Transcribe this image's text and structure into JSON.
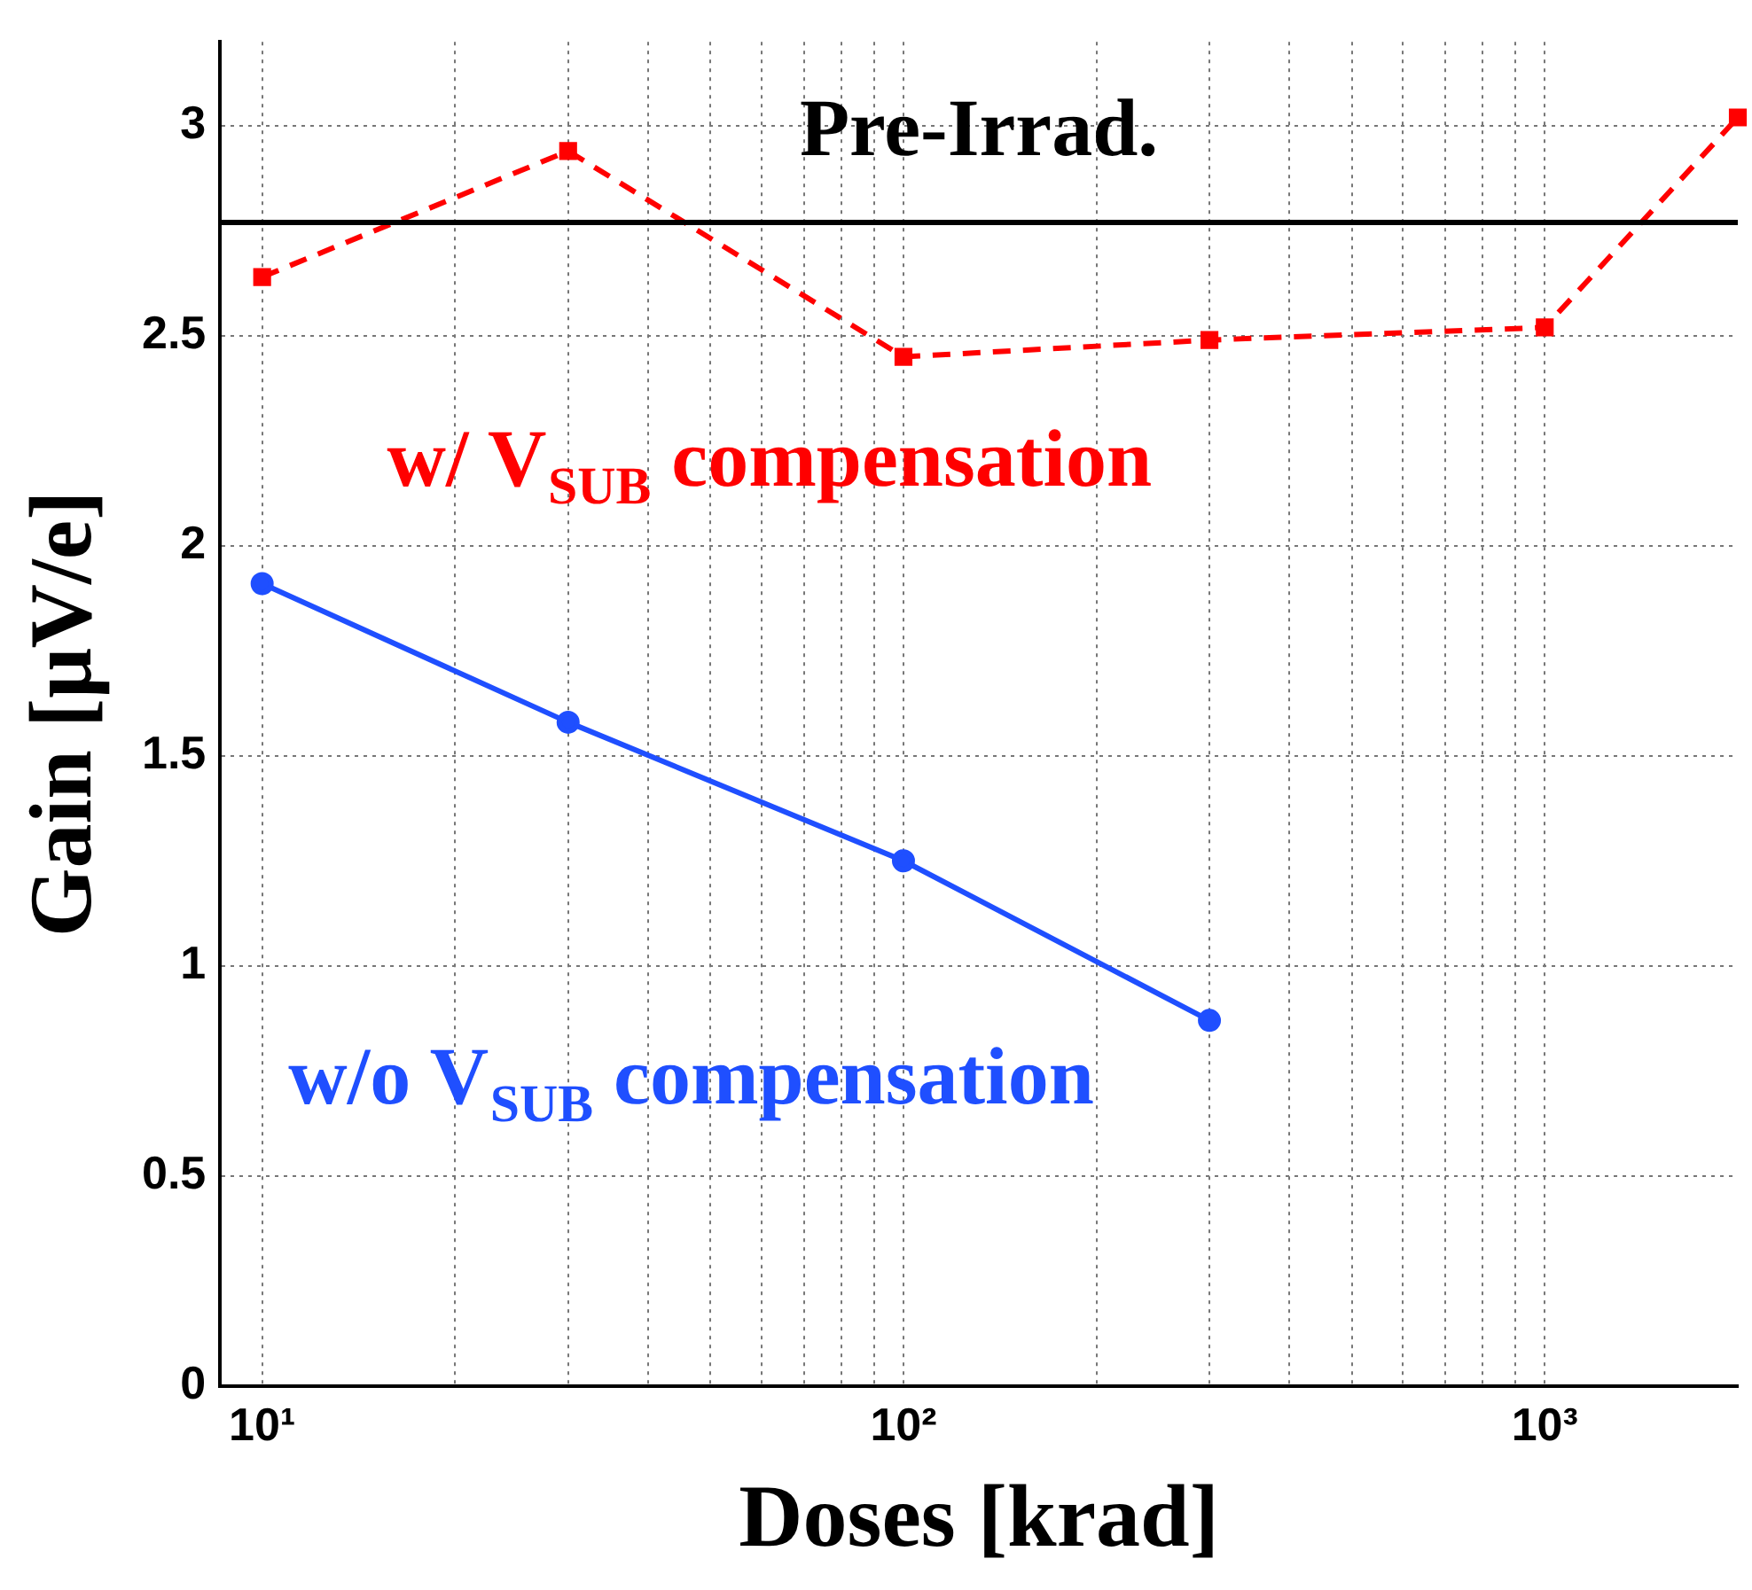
{
  "chart_data": {
    "type": "line",
    "xlabel": "Doses [krad]",
    "ylabel": "Gain [μV/e]",
    "x": [
      10,
      30,
      100,
      300,
      1000,
      2000
    ],
    "series": [
      {
        "name": "w/ V$_{SUB}$ compensation",
        "color": "#ff0000",
        "values": [
          2.64,
          2.94,
          2.45,
          2.49,
          2.52,
          3.02
        ],
        "marker": "square",
        "line_style": "dashed"
      },
      {
        "name": "w/o V$_{SUB}$ compensation",
        "color": "#1f4fff",
        "x": [
          10,
          30,
          100,
          300
        ],
        "values": [
          1.91,
          1.58,
          1.25,
          0.87
        ],
        "marker": "circle",
        "line_style": "solid"
      }
    ],
    "xlim": [
      8.6,
      2000
    ],
    "xticks": [
      {
        "value": 10,
        "label": "10¹"
      },
      {
        "value": 20,
        "label": null
      },
      {
        "value": 30,
        "label": null
      },
      {
        "value": 40,
        "label": null
      },
      {
        "value": 50,
        "label": null
      },
      {
        "value": 60,
        "label": null
      },
      {
        "value": 70,
        "label": null
      },
      {
        "value": 80,
        "label": null
      },
      {
        "value": 90,
        "label": null
      },
      {
        "value": 100,
        "label": "10²"
      },
      {
        "value": 200,
        "label": null
      },
      {
        "value": 300,
        "label": null
      },
      {
        "value": 400,
        "label": null
      },
      {
        "value": 500,
        "label": null
      },
      {
        "value": 600,
        "label": null
      },
      {
        "value": 700,
        "label": null
      },
      {
        "value": 800,
        "label": null
      },
      {
        "value": 900,
        "label": null
      },
      {
        "value": 1000,
        "label": "10³"
      }
    ],
    "ylim": [
      0,
      3.2
    ],
    "yticks": [
      0,
      0.5,
      1,
      1.5,
      2,
      2.5,
      3
    ],
    "log": "x",
    "grid": true,
    "legend": false,
    "ref_lines": [
      {
        "axis": "y",
        "value": 2.77,
        "label": "Pre-Irrad.",
        "color": "#000000"
      }
    ]
  }
}
